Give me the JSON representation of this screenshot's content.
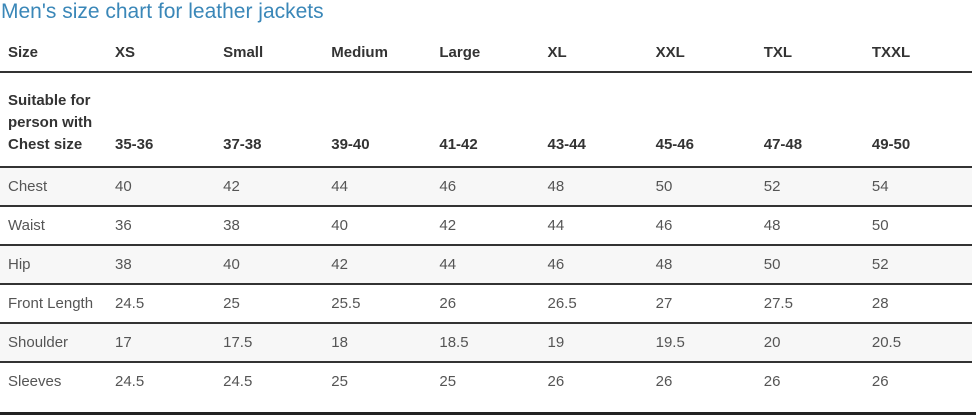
{
  "header": {
    "title": "Men's size chart for leather jackets"
  },
  "table": {
    "columns": [
      "Size",
      "XS",
      "Small",
      "Medium",
      "Large",
      "XL",
      "XXL",
      "TXL",
      "TXXL"
    ],
    "subheader": [
      "Suitable for person with Chest size",
      "35-36",
      "37-38",
      "39-40",
      "41-42",
      "43-44",
      "45-46",
      "47-48",
      "49-50"
    ],
    "rows": [
      [
        "Chest",
        "40",
        "42",
        "44",
        "46",
        "48",
        "50",
        "52",
        "54"
      ],
      [
        "Waist",
        "36",
        "38",
        "40",
        "42",
        "44",
        "46",
        "48",
        "50"
      ],
      [
        "Hip",
        "38",
        "40",
        "42",
        "44",
        "46",
        "48",
        "50",
        "52"
      ],
      [
        "Front Length",
        "24.5",
        "25",
        "25.5",
        "26",
        "26.5",
        "27",
        "27.5",
        "28"
      ],
      [
        "Shoulder",
        "17",
        "17.5",
        "18",
        "18.5",
        "19",
        "19.5",
        "20",
        "20.5"
      ],
      [
        "Sleeves",
        "24.5",
        "24.5",
        "25",
        "25",
        "26",
        "26",
        "26",
        "26"
      ]
    ]
  }
}
